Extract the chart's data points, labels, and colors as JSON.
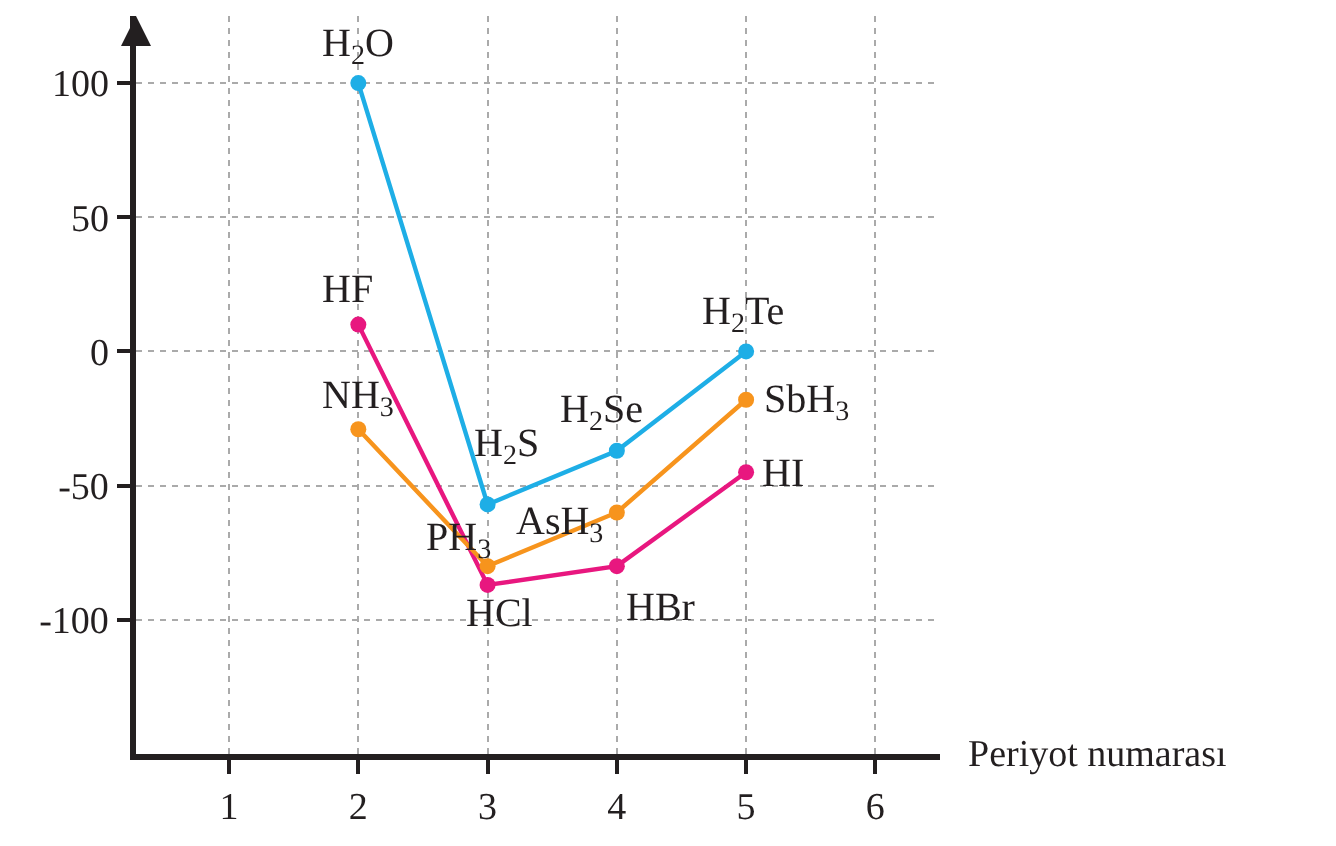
{
  "chart_data": {
    "type": "line",
    "xlabel": "Periyot numarası",
    "x": [
      2,
      3,
      4,
      5
    ],
    "series": [
      {
        "color": "#1eaee6",
        "values": [
          100,
          -57,
          -37,
          0
        ]
      },
      {
        "color": "#e8177f",
        "values": [
          10,
          -87,
          -80,
          -45
        ]
      },
      {
        "color": "#f7941d",
        "values": [
          -29,
          -80,
          -60,
          -18
        ]
      }
    ],
    "xlim": [
      0.28,
      6.5
    ],
    "ylim": [
      -150,
      125
    ],
    "xticks": [
      1,
      2,
      3,
      4,
      5,
      6
    ],
    "yticks": [
      100,
      50,
      0,
      -50,
      -100
    ],
    "grid": true,
    "marker": "circle",
    "line_style": "solid",
    "annotations": [
      {
        "text": "H$_{2}$O",
        "x": 2,
        "y": 100
      },
      {
        "text": "H$_{2}$S",
        "x": 3,
        "y": -57
      },
      {
        "text": "H$_{2}$Se",
        "x": 4,
        "y": -37
      },
      {
        "text": "H$_{2}$Te",
        "x": 5,
        "y": 0
      },
      {
        "text": "HF",
        "x": 2,
        "y": 10
      },
      {
        "text": "HCl",
        "x": 3,
        "y": -87
      },
      {
        "text": "HBr",
        "x": 4,
        "y": -80
      },
      {
        "text": "HI",
        "x": 5,
        "y": -45
      },
      {
        "text": "NH$_{3}$",
        "x": 2,
        "y": -29
      },
      {
        "text": "PH$_{3}$",
        "x": 3,
        "y": -80
      },
      {
        "text": "AsH$_{3}$",
        "x": 4,
        "y": -60
      },
      {
        "text": "SbH$_{3}$",
        "x": 5,
        "y": -18
      }
    ]
  }
}
